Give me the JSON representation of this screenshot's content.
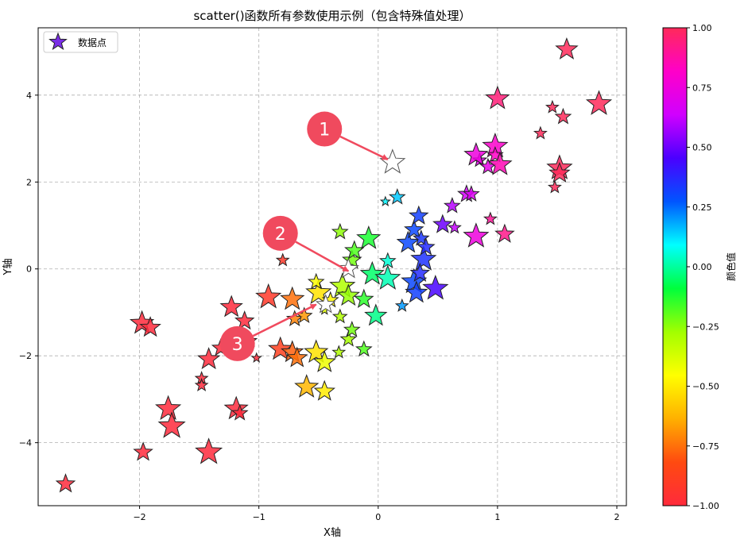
{
  "chart_data": {
    "type": "scatter",
    "title": "scatter()函数所有参数使用示例（包含特殊值处理）",
    "xlabel": "X轴",
    "ylabel": "Y轴",
    "xlim": [
      -2.85,
      2.08
    ],
    "ylim": [
      -5.45,
      5.55
    ],
    "xticks": [
      -2,
      -1,
      0,
      1,
      2
    ],
    "yticks": [
      -4,
      -2,
      0,
      2,
      4
    ],
    "grid": true,
    "grid_style": "dashed",
    "marker": "star",
    "legend": {
      "placement": "top-left",
      "entries": [
        "数据点"
      ],
      "marker_color": "#7a2ee6"
    },
    "colorbar": {
      "label": "颜色值",
      "min": -1.0,
      "max": 1.0,
      "ticks": [
        "-1.00",
        "-0.75",
        "-0.50",
        "-0.25",
        "0.00",
        "0.25",
        "0.50",
        "0.75",
        "1.00"
      ],
      "colormap": "gist_rainbow_r",
      "stops": [
        "#ff2a3c",
        "#ff4a10",
        "#ffb000",
        "#ffff00",
        "#a2ff00",
        "#00ff3c",
        "#00ffff",
        "#0055ff",
        "#4a00ff",
        "#d000ff",
        "#ff00c8",
        "#ff2a5a"
      ]
    },
    "points": [
      {
        "x": -2.62,
        "y": -4.95,
        "s": 12,
        "c": -1.0
      },
      {
        "x": -1.97,
        "y": -4.22,
        "s": 12,
        "c": -1.0
      },
      {
        "x": -1.42,
        "y": -4.22,
        "s": 17,
        "c": -1.0
      },
      {
        "x": -1.76,
        "y": -3.22,
        "s": 16,
        "c": -1.0
      },
      {
        "x": -1.73,
        "y": -3.62,
        "s": 17,
        "c": -1.0
      },
      {
        "x": -1.19,
        "y": -3.22,
        "s": 15,
        "c": -1.0
      },
      {
        "x": -1.16,
        "y": -3.32,
        "s": 10,
        "c": -1.0
      },
      {
        "x": -1.48,
        "y": -2.52,
        "s": 8,
        "c": -1.0
      },
      {
        "x": -1.48,
        "y": -2.68,
        "s": 8,
        "c": -1.0
      },
      {
        "x": -1.42,
        "y": -2.08,
        "s": 14,
        "c": -1.0
      },
      {
        "x": -1.32,
        "y": -1.82,
        "s": 11,
        "c": -1.0
      },
      {
        "x": -1.02,
        "y": -2.05,
        "s": 6,
        "c": -1.0
      },
      {
        "x": -1.98,
        "y": -1.25,
        "s": 15,
        "c": -1.0
      },
      {
        "x": -1.91,
        "y": -1.35,
        "s": 13,
        "c": -1.0
      },
      {
        "x": -1.23,
        "y": -0.88,
        "s": 14,
        "c": -1.0
      },
      {
        "x": -1.12,
        "y": -1.2,
        "s": 12,
        "c": -1.0
      },
      {
        "x": -1.07,
        "y": -1.65,
        "s": 8,
        "c": -1.0
      },
      {
        "x": -0.8,
        "y": 0.2,
        "s": 8,
        "c": -0.92
      },
      {
        "x": -0.92,
        "y": -0.65,
        "s": 16,
        "c": -0.92
      },
      {
        "x": -0.82,
        "y": -1.85,
        "s": 15,
        "c": -0.88
      },
      {
        "x": -0.72,
        "y": -1.92,
        "s": 14,
        "c": -0.78
      },
      {
        "x": -0.68,
        "y": -2.05,
        "s": 13,
        "c": -0.75
      },
      {
        "x": -0.72,
        "y": -0.7,
        "s": 15,
        "c": -0.75
      },
      {
        "x": -0.7,
        "y": -1.15,
        "s": 10,
        "c": -0.72
      },
      {
        "x": -0.62,
        "y": -1.08,
        "s": 10,
        "c": -0.68
      },
      {
        "x": -0.6,
        "y": -2.72,
        "s": 15,
        "c": -0.62
      },
      {
        "x": -0.45,
        "y": -2.82,
        "s": 13,
        "c": -0.5
      },
      {
        "x": -0.52,
        "y": -1.92,
        "s": 15,
        "c": -0.52
      },
      {
        "x": -0.45,
        "y": -2.15,
        "s": 14,
        "c": -0.42
      },
      {
        "x": -0.5,
        "y": -0.55,
        "s": 16,
        "c": -0.52
      },
      {
        "x": -0.4,
        "y": -0.72,
        "s": 10,
        "c": -0.48
      },
      {
        "x": -0.45,
        "y": -0.95,
        "s": 6,
        "c": -0.4
      },
      {
        "x": -0.52,
        "y": -0.3,
        "s": 10,
        "c": -0.45
      },
      {
        "x": -0.33,
        "y": -1.92,
        "s": 8,
        "c": -0.3
      },
      {
        "x": -0.32,
        "y": -1.1,
        "s": 9,
        "c": -0.3
      },
      {
        "x": -0.25,
        "y": -1.62,
        "s": 10,
        "c": -0.28
      },
      {
        "x": -0.22,
        "y": -1.4,
        "s": 10,
        "c": -0.22
      },
      {
        "x": -0.12,
        "y": -1.85,
        "s": 10,
        "c": -0.18
      },
      {
        "x": -0.32,
        "y": 0.85,
        "s": 10,
        "c": -0.25
      },
      {
        "x": -0.3,
        "y": -0.4,
        "s": 16,
        "c": -0.3
      },
      {
        "x": -0.25,
        "y": -0.62,
        "s": 14,
        "c": -0.26
      },
      {
        "x": -0.22,
        "y": 0.2,
        "s": 12,
        "c": -0.22
      },
      {
        "x": -0.2,
        "y": 0.42,
        "s": 12,
        "c": -0.18
      },
      {
        "x": -0.12,
        "y": -0.7,
        "s": 12,
        "c": -0.14
      },
      {
        "x": -0.08,
        "y": 0.7,
        "s": 15,
        "c": -0.12
      },
      {
        "x": -0.05,
        "y": -0.12,
        "s": 15,
        "c": -0.05
      },
      {
        "x": -0.02,
        "y": -1.08,
        "s": 14,
        "c": -0.02
      },
      {
        "x": 0.08,
        "y": -0.22,
        "s": 16,
        "c": 0.02
      },
      {
        "x": 0.08,
        "y": 0.18,
        "s": 10,
        "c": 0.05
      },
      {
        "x": 0.06,
        "y": 1.55,
        "s": 6,
        "c": 0.1
      },
      {
        "x": 0.16,
        "y": 1.65,
        "s": 10,
        "c": 0.15
      },
      {
        "x": 0.2,
        "y": -0.85,
        "s": 8,
        "c": 0.2
      },
      {
        "x": 0.25,
        "y": 0.6,
        "s": 14,
        "c": 0.3
      },
      {
        "x": 0.3,
        "y": -0.3,
        "s": 16,
        "c": 0.3
      },
      {
        "x": 0.3,
        "y": 0.9,
        "s": 12,
        "c": 0.3
      },
      {
        "x": 0.32,
        "y": -0.55,
        "s": 14,
        "c": 0.32
      },
      {
        "x": 0.34,
        "y": 1.22,
        "s": 12,
        "c": 0.32
      },
      {
        "x": 0.36,
        "y": 0.7,
        "s": 10,
        "c": 0.34
      },
      {
        "x": 0.38,
        "y": 0.22,
        "s": 16,
        "c": 0.35
      },
      {
        "x": 0.35,
        "y": -0.1,
        "s": 12,
        "c": 0.36
      },
      {
        "x": 0.4,
        "y": 0.5,
        "s": 11,
        "c": 0.36
      },
      {
        "x": 0.48,
        "y": -0.45,
        "s": 16,
        "c": 0.45
      },
      {
        "x": 0.54,
        "y": 1.02,
        "s": 12,
        "c": 0.5
      },
      {
        "x": 0.62,
        "y": 1.45,
        "s": 10,
        "c": 0.6
      },
      {
        "x": 0.64,
        "y": 0.95,
        "s": 8,
        "c": 0.62
      },
      {
        "x": 0.74,
        "y": 1.72,
        "s": 11,
        "c": 0.65
      },
      {
        "x": 0.78,
        "y": 1.72,
        "s": 10,
        "c": 0.68
      },
      {
        "x": 0.82,
        "y": 0.75,
        "s": 16,
        "c": 0.75
      },
      {
        "x": 0.85,
        "y": 2.5,
        "s": 9,
        "c": 0.7
      },
      {
        "x": 0.82,
        "y": 2.62,
        "s": 15,
        "c": 0.75
      },
      {
        "x": 0.92,
        "y": 2.35,
        "s": 10,
        "c": 0.72
      },
      {
        "x": 0.98,
        "y": 2.82,
        "s": 16,
        "c": 0.8
      },
      {
        "x": 0.98,
        "y": 2.62,
        "s": 10,
        "c": 0.82
      },
      {
        "x": 1.02,
        "y": 2.4,
        "s": 15,
        "c": 0.85
      },
      {
        "x": 0.94,
        "y": 1.15,
        "s": 8,
        "c": 0.9
      },
      {
        "x": 1.06,
        "y": 0.8,
        "s": 12,
        "c": 0.92
      },
      {
        "x": 1.0,
        "y": 3.92,
        "s": 15,
        "c": 0.95
      },
      {
        "x": 1.36,
        "y": 3.12,
        "s": 8,
        "c": 1.0
      },
      {
        "x": 1.46,
        "y": 3.72,
        "s": 8,
        "c": 1.0
      },
      {
        "x": 1.55,
        "y": 3.5,
        "s": 10,
        "c": 1.0
      },
      {
        "x": 1.48,
        "y": 1.88,
        "s": 8,
        "c": 1.0
      },
      {
        "x": 1.52,
        "y": 2.32,
        "s": 16,
        "c": 1.0
      },
      {
        "x": 1.52,
        "y": 2.2,
        "s": 13,
        "c": 1.0
      },
      {
        "x": 1.58,
        "y": 5.05,
        "s": 14,
        "c": 1.0
      },
      {
        "x": 1.85,
        "y": 3.8,
        "s": 16,
        "c": 1.0
      }
    ],
    "special_points": [
      {
        "x": 0.12,
        "y": 2.45,
        "s": 16
      },
      {
        "x": -0.25,
        "y": 0.0,
        "s": 13
      },
      {
        "x": -0.44,
        "y": -0.82,
        "s": 12
      }
    ],
    "annotations": [
      {
        "label": "1",
        "x": -0.45,
        "y": 3.22,
        "target_x": 0.08,
        "target_y": 2.52
      },
      {
        "label": "2",
        "x": -0.82,
        "y": 0.82,
        "target_x": -0.25,
        "target_y": -0.05
      },
      {
        "label": "3",
        "x": -1.18,
        "y": -1.72,
        "target_x": -0.52,
        "target_y": -0.82
      }
    ],
    "annotation_color": "#f04a5e"
  }
}
